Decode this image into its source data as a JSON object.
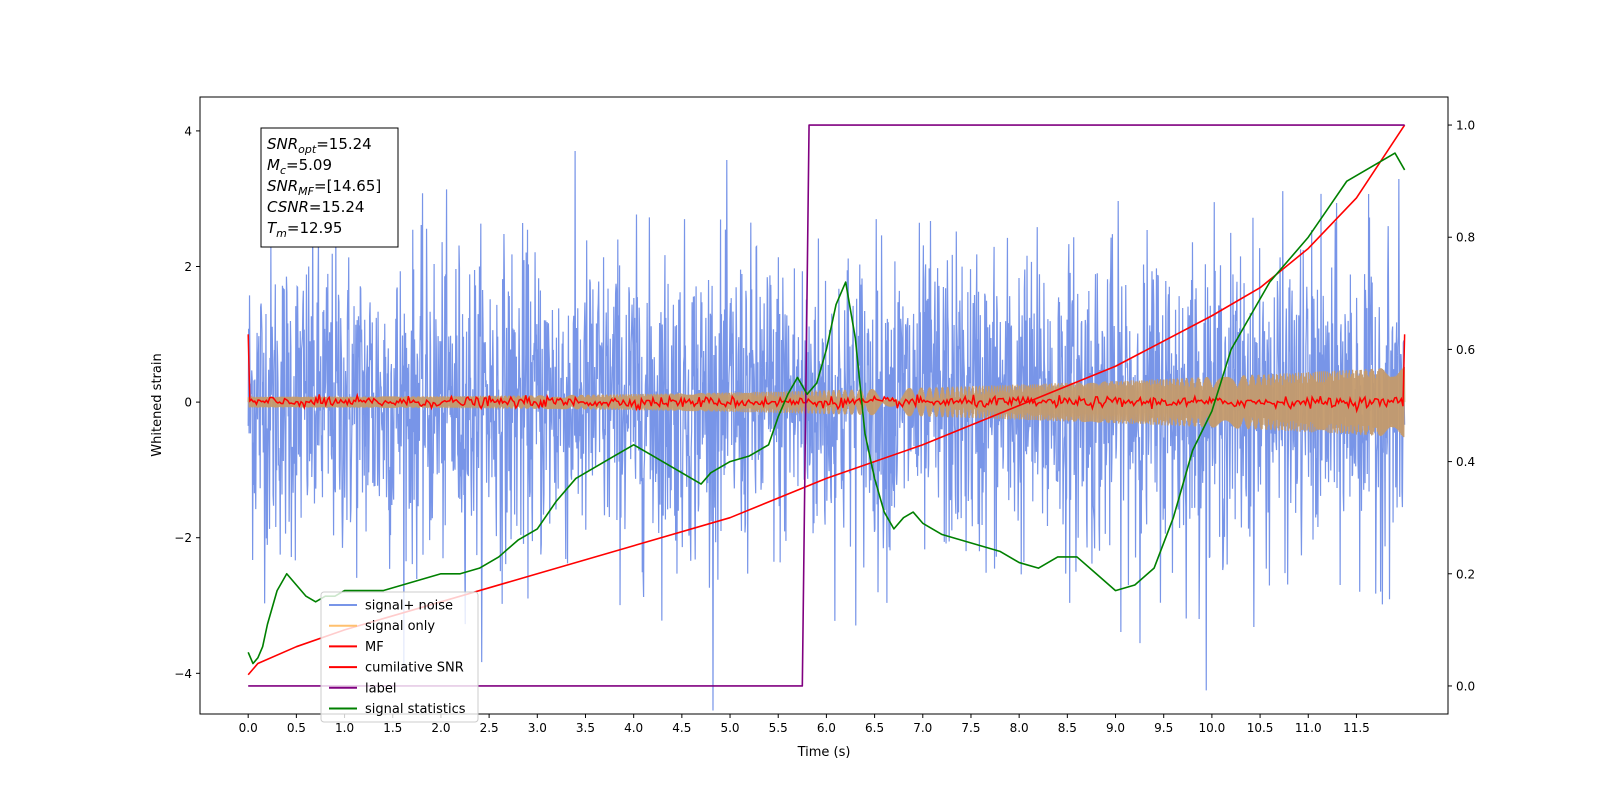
{
  "chart_data": {
    "type": "line",
    "xlabel": "Time (s)",
    "ylabel": "Whitened strain",
    "xlim": [
      -0.5,
      12.45
    ],
    "ylim": [
      -4.6,
      4.5
    ],
    "y2lim": [
      -0.05,
      1.05
    ],
    "x_ticks": [
      "0.0",
      "0.5",
      "1.0",
      "1.5",
      "2.0",
      "2.5",
      "3.0",
      "3.5",
      "4.0",
      "4.5",
      "5.0",
      "5.5",
      "6.0",
      "6.5",
      "7.0",
      "7.5",
      "8.0",
      "8.5",
      "9.0",
      "9.5",
      "10.0",
      "10.5",
      "11.0",
      "11.5"
    ],
    "y_ticks": [
      "4",
      "2",
      "0",
      "−2",
      "−4"
    ],
    "y2_ticks": [
      "1.0",
      "0.8",
      "0.6",
      "0.4",
      "0.2",
      "0.0"
    ],
    "grid": false,
    "legend_position": "lower-left",
    "info_box": {
      "lines": [
        {
          "main": "SNR",
          "sub": "opt",
          "value": "=15.24"
        },
        {
          "main": "M",
          "sub": "c",
          "value": "=5.09"
        },
        {
          "main": "SNR",
          "sub": "MF",
          "value": "=[14.65]"
        },
        {
          "main": "CSNR",
          "sub": "",
          "value": "=15.24"
        },
        {
          "main": "T",
          "sub": "m",
          "value": "=12.95"
        }
      ]
    },
    "series": [
      {
        "name": "signal+ noise",
        "color": "#7895e8",
        "axis": "left",
        "style": "noise",
        "amplitude": 1.45,
        "t_range": [
          0,
          12
        ]
      },
      {
        "name": "signal only",
        "color": "#ffc06e",
        "axis": "left",
        "style": "chirp",
        "envelope_start": 0.08,
        "envelope_end": 0.52,
        "t_range": [
          0,
          12
        ]
      },
      {
        "name": "MF",
        "color": "#ff0000",
        "axis": "left",
        "style": "noise",
        "amplitude": 0.07,
        "endpoints": 1.0,
        "t_range": [
          0,
          12
        ]
      },
      {
        "name": "cumilative SNR",
        "color": "#ff0000",
        "axis": "right",
        "points": [
          [
            0,
            0.02
          ],
          [
            0.1,
            0.04
          ],
          [
            0.5,
            0.07
          ],
          [
            1,
            0.1
          ],
          [
            2,
            0.15
          ],
          [
            3,
            0.2
          ],
          [
            4,
            0.25
          ],
          [
            5,
            0.3
          ],
          [
            6,
            0.37
          ],
          [
            7,
            0.43
          ],
          [
            8,
            0.5
          ],
          [
            9,
            0.57
          ],
          [
            10,
            0.66
          ],
          [
            10.5,
            0.71
          ],
          [
            11,
            0.78
          ],
          [
            11.5,
            0.87
          ],
          [
            12,
            1.0
          ]
        ]
      },
      {
        "name": "label",
        "color": "#800080",
        "axis": "right",
        "points": [
          [
            0,
            0.0
          ],
          [
            5.75,
            0.0
          ],
          [
            5.82,
            1.0
          ],
          [
            12,
            1.0
          ]
        ]
      },
      {
        "name": "signal statistics",
        "color": "#008000",
        "axis": "right",
        "points": [
          [
            0,
            0.06
          ],
          [
            0.05,
            0.04
          ],
          [
            0.1,
            0.05
          ],
          [
            0.15,
            0.07
          ],
          [
            0.2,
            0.11
          ],
          [
            0.3,
            0.17
          ],
          [
            0.4,
            0.2
          ],
          [
            0.5,
            0.18
          ],
          [
            0.6,
            0.16
          ],
          [
            0.7,
            0.15
          ],
          [
            0.8,
            0.16
          ],
          [
            0.9,
            0.16
          ],
          [
            1.0,
            0.17
          ],
          [
            1.2,
            0.17
          ],
          [
            1.4,
            0.17
          ],
          [
            1.6,
            0.18
          ],
          [
            1.8,
            0.19
          ],
          [
            2.0,
            0.2
          ],
          [
            2.2,
            0.2
          ],
          [
            2.4,
            0.21
          ],
          [
            2.6,
            0.23
          ],
          [
            2.8,
            0.26
          ],
          [
            3.0,
            0.28
          ],
          [
            3.2,
            0.33
          ],
          [
            3.4,
            0.37
          ],
          [
            3.6,
            0.39
          ],
          [
            3.8,
            0.41
          ],
          [
            4.0,
            0.43
          ],
          [
            4.2,
            0.41
          ],
          [
            4.4,
            0.39
          ],
          [
            4.6,
            0.37
          ],
          [
            4.7,
            0.36
          ],
          [
            4.8,
            0.38
          ],
          [
            5.0,
            0.4
          ],
          [
            5.2,
            0.41
          ],
          [
            5.4,
            0.43
          ],
          [
            5.5,
            0.48
          ],
          [
            5.6,
            0.52
          ],
          [
            5.7,
            0.55
          ],
          [
            5.8,
            0.52
          ],
          [
            5.9,
            0.54
          ],
          [
            6.0,
            0.6
          ],
          [
            6.1,
            0.68
          ],
          [
            6.2,
            0.72
          ],
          [
            6.3,
            0.62
          ],
          [
            6.4,
            0.45
          ],
          [
            6.5,
            0.37
          ],
          [
            6.6,
            0.31
          ],
          [
            6.7,
            0.28
          ],
          [
            6.8,
            0.3
          ],
          [
            6.9,
            0.31
          ],
          [
            7.0,
            0.29
          ],
          [
            7.2,
            0.27
          ],
          [
            7.4,
            0.26
          ],
          [
            7.6,
            0.25
          ],
          [
            7.8,
            0.24
          ],
          [
            8.0,
            0.22
          ],
          [
            8.2,
            0.21
          ],
          [
            8.4,
            0.23
          ],
          [
            8.6,
            0.23
          ],
          [
            8.8,
            0.2
          ],
          [
            9.0,
            0.17
          ],
          [
            9.2,
            0.18
          ],
          [
            9.4,
            0.21
          ],
          [
            9.6,
            0.3
          ],
          [
            9.8,
            0.42
          ],
          [
            10.0,
            0.49
          ],
          [
            10.2,
            0.6
          ],
          [
            10.4,
            0.66
          ],
          [
            10.6,
            0.72
          ],
          [
            10.8,
            0.76
          ],
          [
            11.0,
            0.8
          ],
          [
            11.2,
            0.85
          ],
          [
            11.4,
            0.9
          ],
          [
            11.6,
            0.92
          ],
          [
            11.8,
            0.94
          ],
          [
            11.9,
            0.95
          ],
          [
            12.0,
            0.92
          ]
        ]
      }
    ]
  }
}
